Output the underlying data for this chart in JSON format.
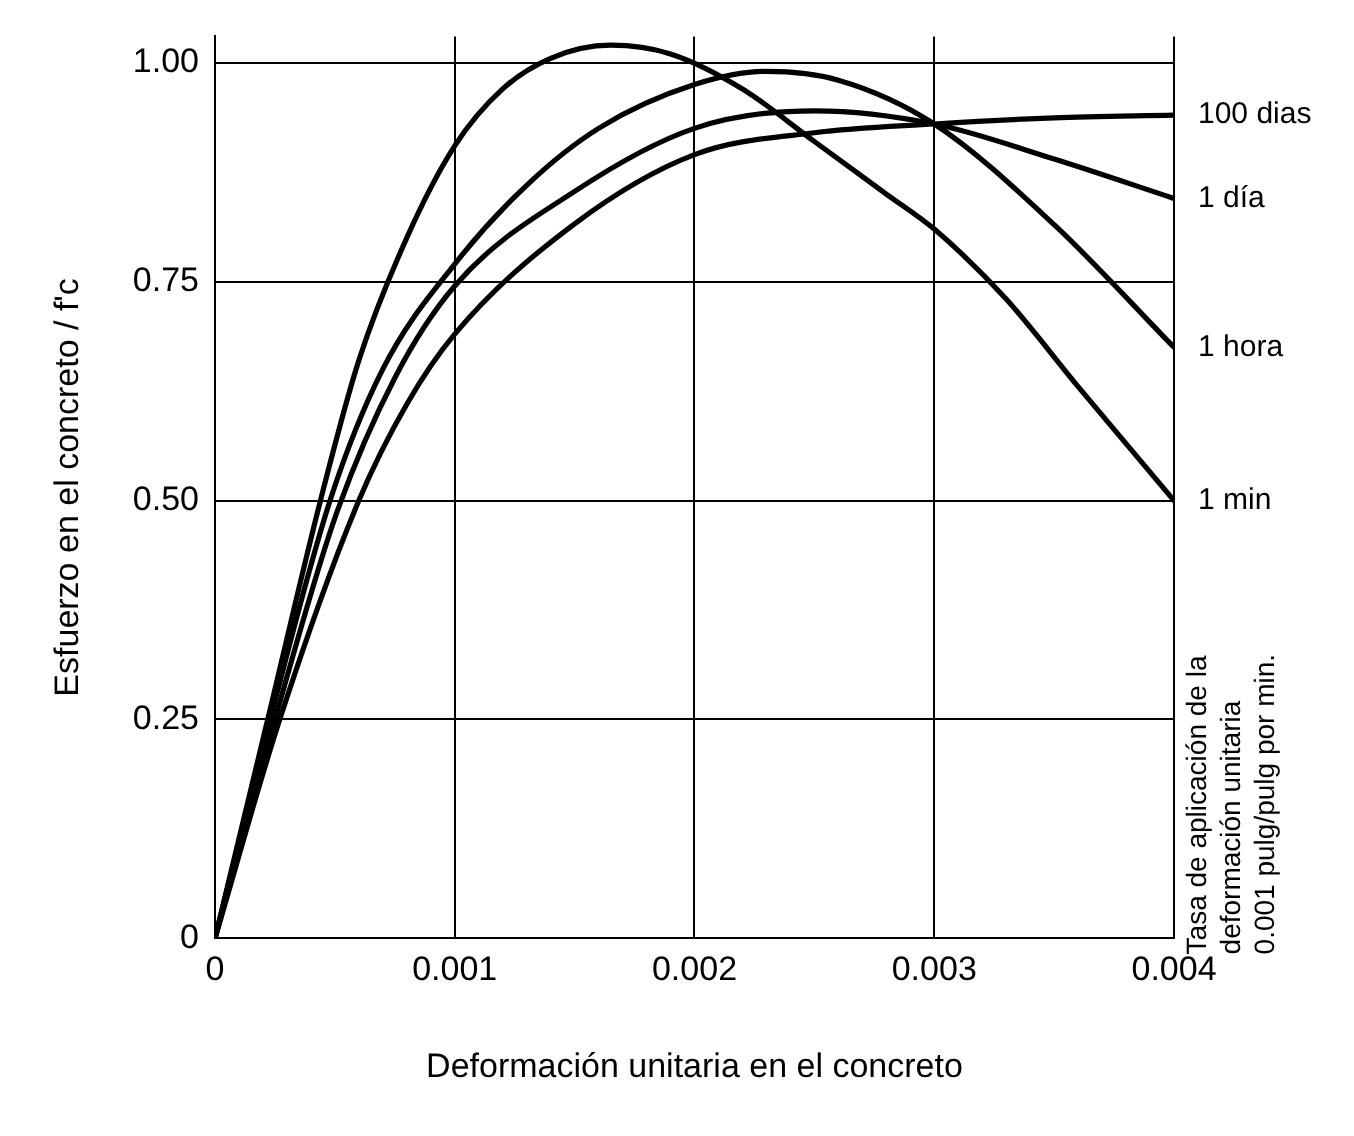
{
  "chart_data": {
    "type": "line",
    "xlabel": "Deformación unitaria en el concreto",
    "ylabel": "Esfuerzo en el concreto / f'c",
    "annotations": [
      "Tasa de aplicación de la\ndeformación unitaria\n0.001 pulg/pulg por min."
    ],
    "xlim": [
      0,
      0.004
    ],
    "xticks": [
      0,
      0.001,
      0.002,
      0.003,
      0.004
    ],
    "ylim": [
      0,
      1.03
    ],
    "yticks": [
      0,
      0.25,
      {
        "value": 0.5,
        "label": "0.50"
      },
      0.75,
      {
        "value": 1,
        "label": "1.00"
      }
    ],
    "grid": true,
    "legend": false,
    "marker": "none",
    "line_style": "solid",
    "series": [
      {
        "name": "100 dias",
        "color": "#000000",
        "x": [
          0,
          0.00027,
          0.0006,
          0.0008,
          0.001,
          0.0015,
          0.002,
          0.0025,
          0.003,
          0.0035,
          0.004
        ],
        "values": [
          0,
          0.25,
          0.5,
          0.61,
          0.69,
          0.816,
          0.895,
          0.92,
          0.93,
          0.937,
          0.94
        ]
      },
      {
        "name": "1 día",
        "color": "#000000",
        "x": [
          0,
          0.00025,
          0.0005,
          0.00075,
          0.001,
          0.0015,
          0.002,
          0.0025,
          0.003,
          0.0035,
          0.004
        ],
        "values": [
          0,
          0.25,
          0.48,
          0.64,
          0.745,
          0.853,
          0.925,
          0.945,
          0.93,
          0.89,
          0.845
        ]
      },
      {
        "name": "1 hora",
        "color": "#000000",
        "x": [
          0,
          0.00023,
          0.00048,
          0.0007,
          0.001,
          0.0013,
          0.0016,
          0.002,
          0.0023,
          0.0026,
          0.003,
          0.0035,
          0.004
        ],
        "values": [
          0,
          0.25,
          0.5,
          0.65,
          0.77,
          0.86,
          0.925,
          0.975,
          0.99,
          0.98,
          0.93,
          0.815,
          0.675
        ]
      },
      {
        "name": "1 min",
        "color": "#000000",
        "x": [
          0,
          0.00022,
          0.00044,
          0.0006,
          0.0008,
          0.001,
          0.0012,
          0.0014,
          0.00165,
          0.0019,
          0.0022,
          0.0025,
          0.0028,
          0.003,
          0.0033,
          0.0036,
          0.004
        ],
        "values": [
          0,
          0.25,
          0.5,
          0.66,
          0.8,
          0.905,
          0.97,
          1.005,
          1.02,
          1.01,
          0.97,
          0.91,
          0.85,
          0.81,
          0.73,
          0.63,
          0.5
        ]
      }
    ]
  }
}
